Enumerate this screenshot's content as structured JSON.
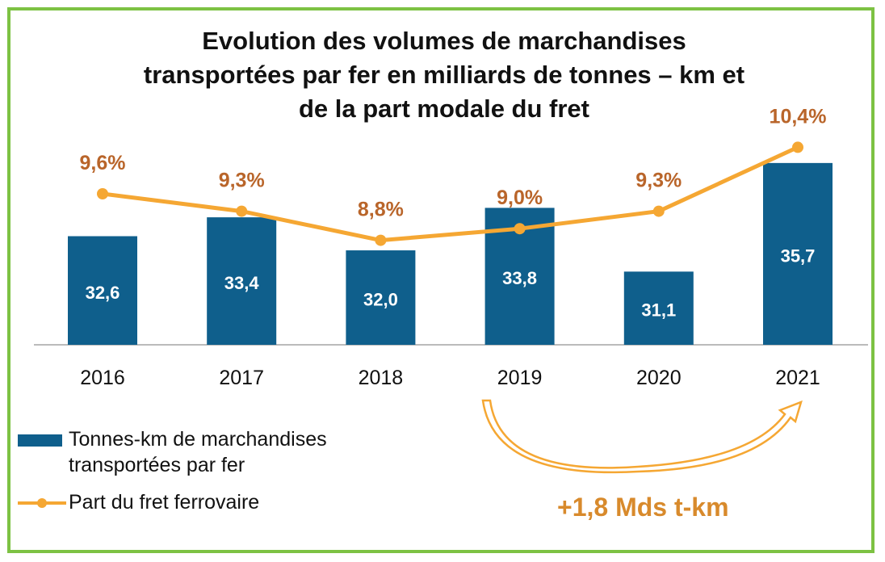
{
  "chart_data": {
    "type": "bar",
    "title": [
      "Evolution des volumes de marchandises",
      "transportées par fer en milliards de tonnes – km et",
      "de la part modale du fret"
    ],
    "categories": [
      "2016",
      "2017",
      "2018",
      "2019",
      "2020",
      "2021"
    ],
    "series": [
      {
        "name": "Tonnes-km de marchandises transportées par fer",
        "type": "bar",
        "values": [
          32.6,
          33.4,
          32.0,
          33.8,
          31.1,
          35.7
        ],
        "labels": [
          "32,6",
          "33,4",
          "32,0",
          "33,8",
          "31,1",
          "35,7"
        ],
        "color": "#0f5f8c"
      },
      {
        "name": "Part du fret ferrovaire",
        "type": "line",
        "values": [
          9.6,
          9.3,
          8.8,
          9.0,
          9.3,
          10.4
        ],
        "labels": [
          "9,6%",
          "9,3%",
          "8,8%",
          "9,0%",
          "9,3%",
          "10,4%"
        ],
        "color": "#f5a733",
        "label_color": "#b9652a"
      }
    ],
    "legend": {
      "placement": "bottom-left",
      "entries": [
        "Tonnes-km de marchandises",
        "transportées par fer",
        "Part du fret ferrovaire"
      ]
    },
    "annotation": "+1,8 Mds t-km",
    "bar_ylim": [
      28,
      37
    ],
    "line_ylim": [
      6.3,
      11.0
    ],
    "grid": false
  }
}
